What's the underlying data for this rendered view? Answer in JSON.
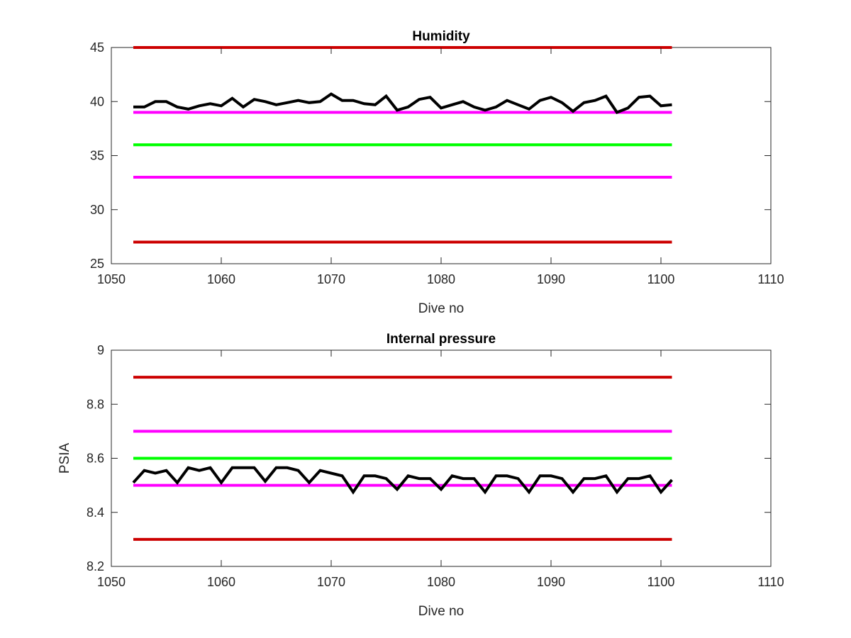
{
  "chart_data": [
    {
      "type": "line",
      "title": "Humidity",
      "xlabel": "Dive no",
      "ylabel": "",
      "xlim": [
        1050,
        1110
      ],
      "ylim": [
        25,
        45
      ],
      "xticks": [
        "1050",
        "1060",
        "1070",
        "1080",
        "1090",
        "1100",
        "1110"
      ],
      "yticks": [
        "25",
        "30",
        "35",
        "40",
        "45"
      ],
      "grid": false,
      "legend": "none",
      "reference_lines": [
        {
          "y": 45,
          "x": [
            1052,
            1101
          ],
          "color": "#cc0000"
        },
        {
          "y": 39,
          "x": [
            1052,
            1101
          ],
          "color": "#ff00ff"
        },
        {
          "y": 36,
          "x": [
            1052,
            1101
          ],
          "color": "#00ff00"
        },
        {
          "y": 33,
          "x": [
            1052,
            1101
          ],
          "color": "#ff00ff"
        },
        {
          "y": 27,
          "x": [
            1052,
            1101
          ],
          "color": "#cc0000"
        }
      ],
      "series": [
        {
          "color": "#000000",
          "x": [
            1052,
            1053,
            1054,
            1055,
            1056,
            1057,
            1058,
            1059,
            1060,
            1061,
            1062,
            1063,
            1064,
            1065,
            1066,
            1067,
            1068,
            1069,
            1070,
            1071,
            1072,
            1073,
            1074,
            1075,
            1076,
            1077,
            1078,
            1079,
            1080,
            1081,
            1082,
            1083,
            1084,
            1085,
            1086,
            1087,
            1088,
            1089,
            1090,
            1091,
            1092,
            1093,
            1094,
            1095,
            1096,
            1097,
            1098,
            1099,
            1100,
            1101
          ],
          "y": [
            39.5,
            39.5,
            40.0,
            40.0,
            39.5,
            39.3,
            39.6,
            39.8,
            39.6,
            40.3,
            39.5,
            40.2,
            40.0,
            39.7,
            39.9,
            40.1,
            39.9,
            40.0,
            40.7,
            40.1,
            40.1,
            39.8,
            39.7,
            40.5,
            39.2,
            39.5,
            40.2,
            40.4,
            39.4,
            39.7,
            40.0,
            39.5,
            39.2,
            39.5,
            40.1,
            39.7,
            39.3,
            40.1,
            40.4,
            39.9,
            39.1,
            39.9,
            40.1,
            40.5,
            39.0,
            39.4,
            40.4,
            40.5,
            39.6,
            39.7
          ]
        }
      ]
    },
    {
      "type": "line",
      "title": "Internal pressure",
      "xlabel": "Dive no",
      "ylabel": "PSIA",
      "xlim": [
        1050,
        1110
      ],
      "ylim": [
        8.2,
        9.0
      ],
      "xticks": [
        "1050",
        "1060",
        "1070",
        "1080",
        "1090",
        "1100",
        "1110"
      ],
      "yticks": [
        "8.2",
        "8.4",
        "8.6",
        "8.8",
        "9"
      ],
      "grid": false,
      "legend": "none",
      "reference_lines": [
        {
          "y": 8.9,
          "x": [
            1052,
            1101
          ],
          "color": "#cc0000"
        },
        {
          "y": 8.7,
          "x": [
            1052,
            1101
          ],
          "color": "#ff00ff"
        },
        {
          "y": 8.6,
          "x": [
            1052,
            1101
          ],
          "color": "#00ff00"
        },
        {
          "y": 8.5,
          "x": [
            1052,
            1101
          ],
          "color": "#ff00ff"
        },
        {
          "y": 8.3,
          "x": [
            1052,
            1101
          ],
          "color": "#cc0000"
        }
      ],
      "series": [
        {
          "color": "#000000",
          "x": [
            1052,
            1053,
            1054,
            1055,
            1056,
            1057,
            1058,
            1059,
            1060,
            1061,
            1062,
            1063,
            1064,
            1065,
            1066,
            1067,
            1068,
            1069,
            1070,
            1071,
            1072,
            1073,
            1074,
            1075,
            1076,
            1077,
            1078,
            1079,
            1080,
            1081,
            1082,
            1083,
            1084,
            1085,
            1086,
            1087,
            1088,
            1089,
            1090,
            1091,
            1092,
            1093,
            1094,
            1095,
            1096,
            1097,
            1098,
            1099,
            1100,
            1101
          ],
          "y": [
            8.51,
            8.555,
            8.545,
            8.555,
            8.51,
            8.565,
            8.555,
            8.565,
            8.51,
            8.565,
            8.565,
            8.565,
            8.515,
            8.565,
            8.565,
            8.555,
            8.51,
            8.555,
            8.545,
            8.535,
            8.475,
            8.535,
            8.535,
            8.525,
            8.485,
            8.535,
            8.525,
            8.525,
            8.485,
            8.535,
            8.525,
            8.525,
            8.475,
            8.535,
            8.535,
            8.525,
            8.475,
            8.535,
            8.535,
            8.525,
            8.475,
            8.525,
            8.525,
            8.535,
            8.475,
            8.525,
            8.525,
            8.535,
            8.475,
            8.52
          ]
        }
      ]
    }
  ]
}
